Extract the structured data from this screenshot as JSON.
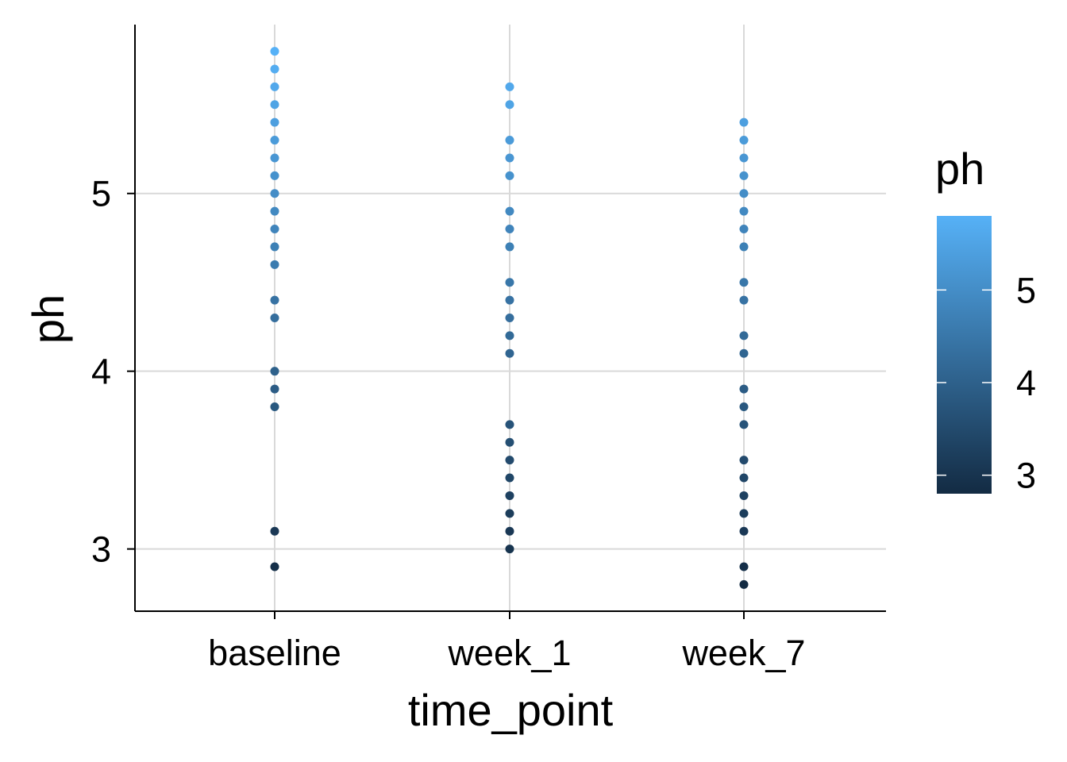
{
  "chart_data": {
    "type": "scatter",
    "xlabel": "time_point",
    "ylabel": "ph",
    "categories": [
      "baseline",
      "week_1",
      "week_7"
    ],
    "ylim": [
      2.65,
      5.95
    ],
    "yticks": [
      3,
      4,
      5
    ],
    "grid": true,
    "legend": {
      "title": "ph",
      "type": "colorbar",
      "placement": "right",
      "range": [
        2.8,
        5.8
      ],
      "ticks": [
        3,
        4,
        5
      ],
      "color_low": "#132B43",
      "color_high": "#56B1F7"
    },
    "points": [
      {
        "x": "baseline",
        "y": 5.8
      },
      {
        "x": "baseline",
        "y": 5.7
      },
      {
        "x": "baseline",
        "y": 5.6
      },
      {
        "x": "baseline",
        "y": 5.5
      },
      {
        "x": "baseline",
        "y": 5.4
      },
      {
        "x": "baseline",
        "y": 5.3
      },
      {
        "x": "baseline",
        "y": 5.2
      },
      {
        "x": "baseline",
        "y": 5.1
      },
      {
        "x": "baseline",
        "y": 5.0
      },
      {
        "x": "baseline",
        "y": 4.9
      },
      {
        "x": "baseline",
        "y": 4.8
      },
      {
        "x": "baseline",
        "y": 4.7
      },
      {
        "x": "baseline",
        "y": 4.6
      },
      {
        "x": "baseline",
        "y": 4.4
      },
      {
        "x": "baseline",
        "y": 4.3
      },
      {
        "x": "baseline",
        "y": 4.0
      },
      {
        "x": "baseline",
        "y": 3.9
      },
      {
        "x": "baseline",
        "y": 3.8
      },
      {
        "x": "baseline",
        "y": 3.1
      },
      {
        "x": "baseline",
        "y": 2.9
      },
      {
        "x": "week_1",
        "y": 5.6
      },
      {
        "x": "week_1",
        "y": 5.5
      },
      {
        "x": "week_1",
        "y": 5.3
      },
      {
        "x": "week_1",
        "y": 5.2
      },
      {
        "x": "week_1",
        "y": 5.1
      },
      {
        "x": "week_1",
        "y": 4.9
      },
      {
        "x": "week_1",
        "y": 4.8
      },
      {
        "x": "week_1",
        "y": 4.7
      },
      {
        "x": "week_1",
        "y": 4.5
      },
      {
        "x": "week_1",
        "y": 4.4
      },
      {
        "x": "week_1",
        "y": 4.3
      },
      {
        "x": "week_1",
        "y": 4.2
      },
      {
        "x": "week_1",
        "y": 4.1
      },
      {
        "x": "week_1",
        "y": 3.7
      },
      {
        "x": "week_1",
        "y": 3.6
      },
      {
        "x": "week_1",
        "y": 3.5
      },
      {
        "x": "week_1",
        "y": 3.4
      },
      {
        "x": "week_1",
        "y": 3.3
      },
      {
        "x": "week_1",
        "y": 3.2
      },
      {
        "x": "week_1",
        "y": 3.1
      },
      {
        "x": "week_1",
        "y": 3.0
      },
      {
        "x": "week_7",
        "y": 5.4
      },
      {
        "x": "week_7",
        "y": 5.3
      },
      {
        "x": "week_7",
        "y": 5.2
      },
      {
        "x": "week_7",
        "y": 5.1
      },
      {
        "x": "week_7",
        "y": 5.0
      },
      {
        "x": "week_7",
        "y": 4.9
      },
      {
        "x": "week_7",
        "y": 4.8
      },
      {
        "x": "week_7",
        "y": 4.7
      },
      {
        "x": "week_7",
        "y": 4.5
      },
      {
        "x": "week_7",
        "y": 4.4
      },
      {
        "x": "week_7",
        "y": 4.2
      },
      {
        "x": "week_7",
        "y": 4.1
      },
      {
        "x": "week_7",
        "y": 3.9
      },
      {
        "x": "week_7",
        "y": 3.8
      },
      {
        "x": "week_7",
        "y": 3.7
      },
      {
        "x": "week_7",
        "y": 3.5
      },
      {
        "x": "week_7",
        "y": 3.4
      },
      {
        "x": "week_7",
        "y": 3.3
      },
      {
        "x": "week_7",
        "y": 3.2
      },
      {
        "x": "week_7",
        "y": 3.1
      },
      {
        "x": "week_7",
        "y": 2.9
      },
      {
        "x": "week_7",
        "y": 2.8
      }
    ]
  }
}
